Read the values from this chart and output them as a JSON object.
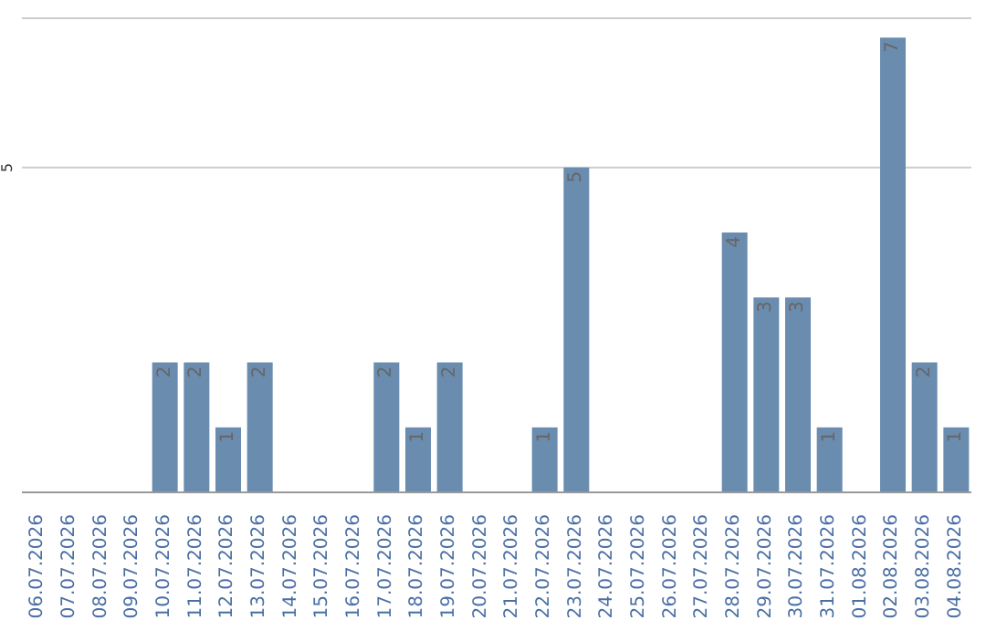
{
  "chart_data": {
    "type": "bar",
    "categories": [
      "06.07.2026",
      "07.07.2026",
      "08.07.2026",
      "09.07.2026",
      "10.07.2026",
      "11.07.2026",
      "12.07.2026",
      "13.07.2026",
      "14.07.2026",
      "15.07.2026",
      "16.07.2026",
      "17.07.2026",
      "18.07.2026",
      "19.07.2026",
      "20.07.2026",
      "21.07.2026",
      "22.07.2026",
      "23.07.2026",
      "24.07.2026",
      "25.07.2026",
      "26.07.2026",
      "27.07.2026",
      "28.07.2026",
      "29.07.2026",
      "30.07.2026",
      "31.07.2026",
      "01.08.2026",
      "02.08.2026",
      "03.08.2026",
      "04.08.2026"
    ],
    "values": [
      0,
      0,
      0,
      0,
      2,
      2,
      1,
      2,
      0,
      0,
      0,
      2,
      1,
      2,
      0,
      0,
      1,
      5,
      0,
      0,
      0,
      0,
      4,
      3,
      3,
      1,
      0,
      7,
      2,
      1
    ],
    "value_labels": [
      null,
      null,
      null,
      null,
      "2",
      "2",
      "1",
      "2",
      null,
      null,
      null,
      "2",
      "1",
      "2",
      null,
      null,
      "1",
      "5",
      null,
      null,
      null,
      null,
      "4",
      "3",
      "3",
      "1",
      null,
      "7",
      "2",
      "1"
    ],
    "color": "#6a8caf",
    "ylim": [
      0,
      7.3
    ],
    "yticks": [
      5
    ],
    "grid": "y"
  }
}
